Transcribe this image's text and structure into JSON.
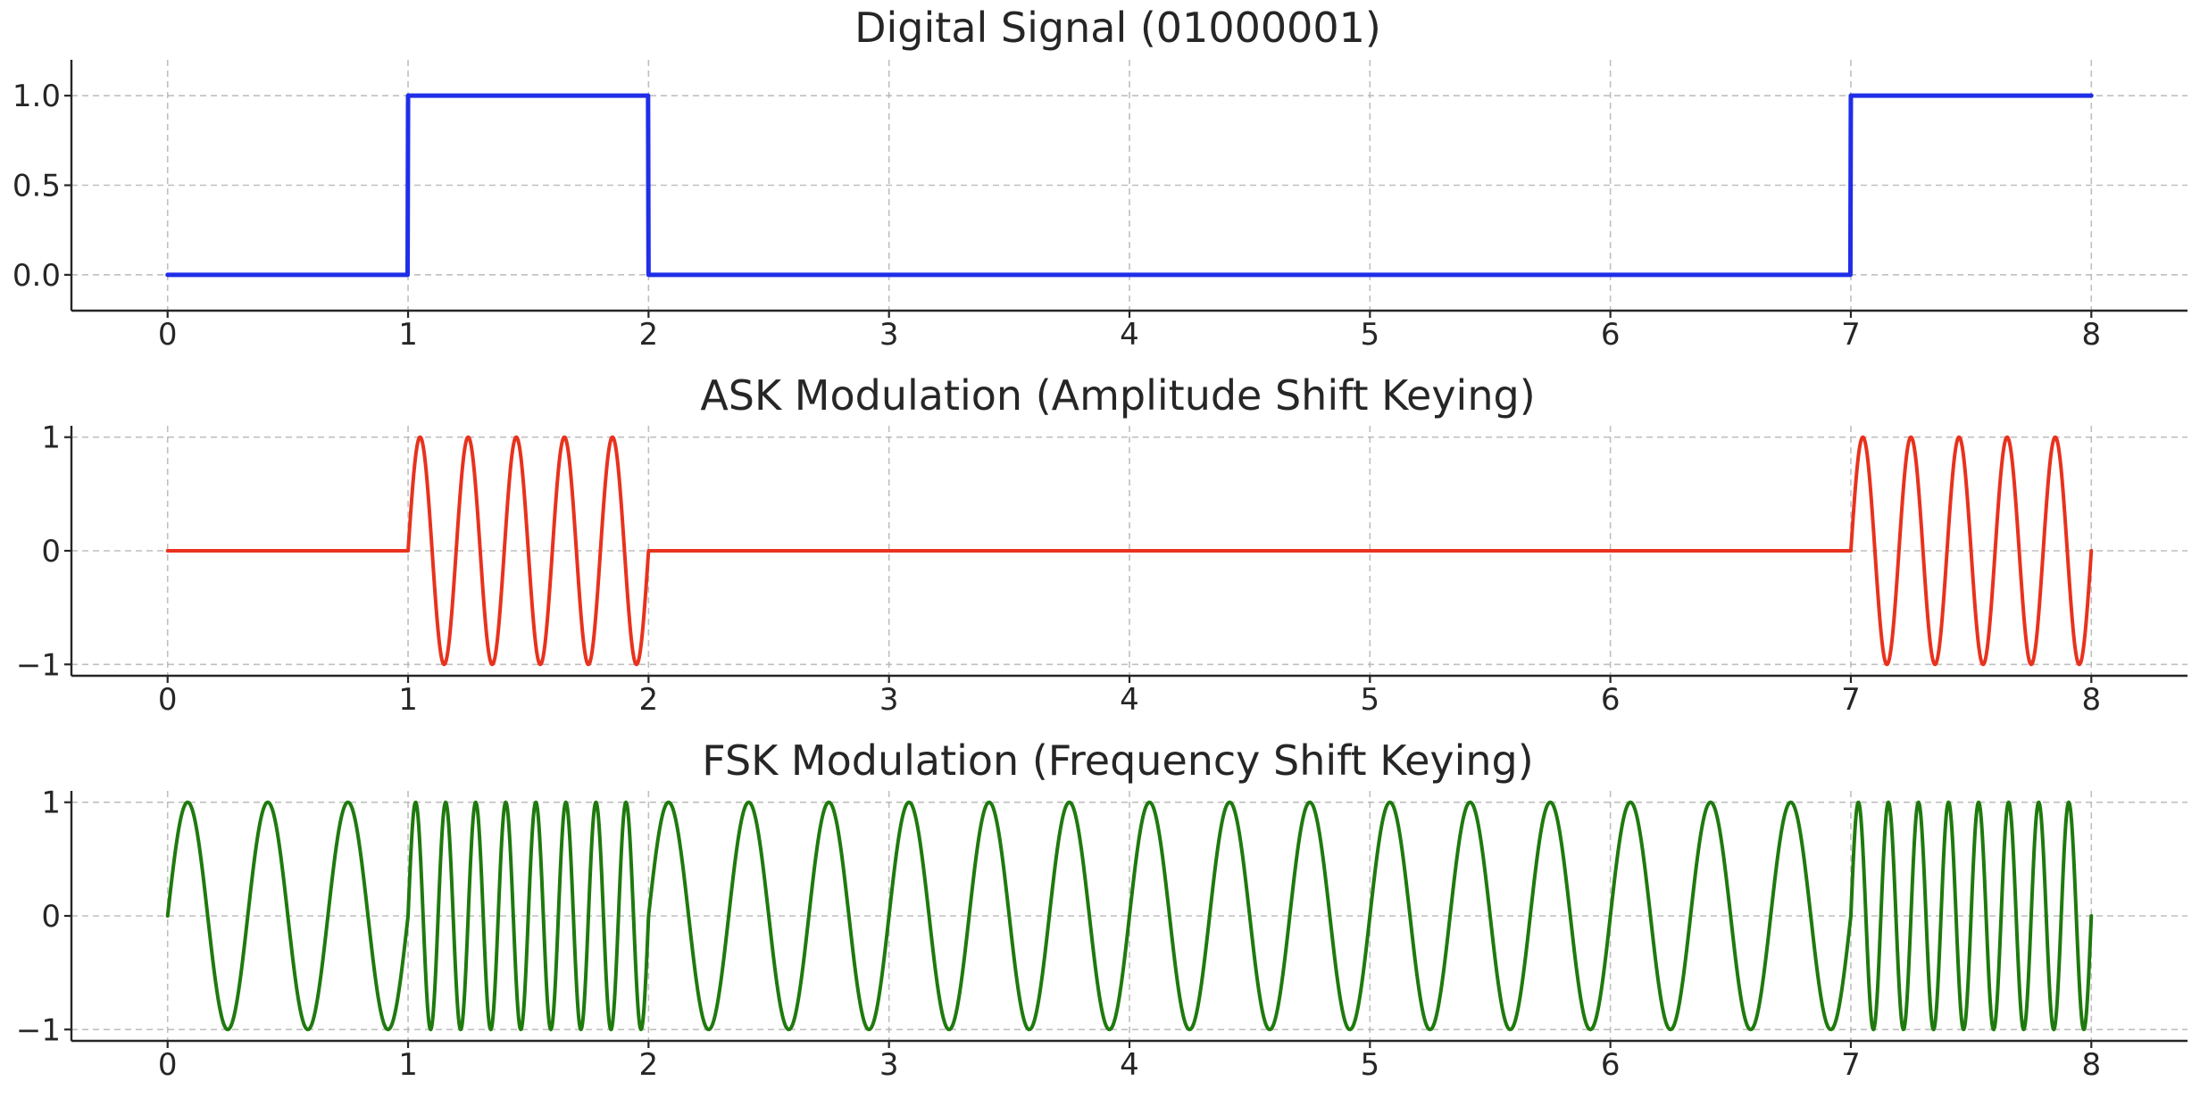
{
  "chart_data": [
    {
      "type": "line",
      "title": "Digital Signal (01000001)",
      "signal": "step",
      "bits": [
        0,
        1,
        0,
        0,
        0,
        0,
        0,
        1
      ],
      "color": "#1f2ee8",
      "xlim": [
        -0.4,
        8.4
      ],
      "ylim": [
        -0.2,
        1.2
      ],
      "xticks": [
        0,
        1,
        2,
        3,
        4,
        5,
        6,
        7,
        8
      ],
      "xtick_labels": [
        "0",
        "1",
        "2",
        "3",
        "4",
        "5",
        "6",
        "7",
        "8"
      ],
      "yticks": [
        0,
        0.5,
        1
      ],
      "ytick_labels": [
        "0.0",
        "0.5",
        "1.0"
      ],
      "grid": true
    },
    {
      "type": "line",
      "title": "ASK Modulation (Amplitude Shift Keying)",
      "signal": "ask",
      "bits": [
        0,
        1,
        0,
        0,
        0,
        0,
        0,
        1
      ],
      "carrier_cycles_per_bit": 5,
      "color": "#e8321e",
      "xlim": [
        -0.4,
        8.4
      ],
      "ylim": [
        -1.1,
        1.1
      ],
      "xticks": [
        0,
        1,
        2,
        3,
        4,
        5,
        6,
        7,
        8
      ],
      "xtick_labels": [
        "0",
        "1",
        "2",
        "3",
        "4",
        "5",
        "6",
        "7",
        "8"
      ],
      "yticks": [
        -1,
        0,
        1
      ],
      "ytick_labels": [
        "−1",
        "0",
        "1"
      ],
      "grid": true
    },
    {
      "type": "line",
      "title": "FSK Modulation (Frequency Shift Keying)",
      "signal": "fsk",
      "bits": [
        0,
        1,
        0,
        0,
        0,
        0,
        0,
        1
      ],
      "cycles_per_bit_for_0": 3,
      "cycles_per_bit_for_1": 8,
      "color": "#1f7a0e",
      "xlim": [
        -0.4,
        8.4
      ],
      "ylim": [
        -1.1,
        1.1
      ],
      "xticks": [
        0,
        1,
        2,
        3,
        4,
        5,
        6,
        7,
        8
      ],
      "xtick_labels": [
        "0",
        "1",
        "2",
        "3",
        "4",
        "5",
        "6",
        "7",
        "8"
      ],
      "yticks": [
        -1,
        0,
        1
      ],
      "ytick_labels": [
        "−1",
        "0",
        "1"
      ],
      "grid": true
    }
  ]
}
